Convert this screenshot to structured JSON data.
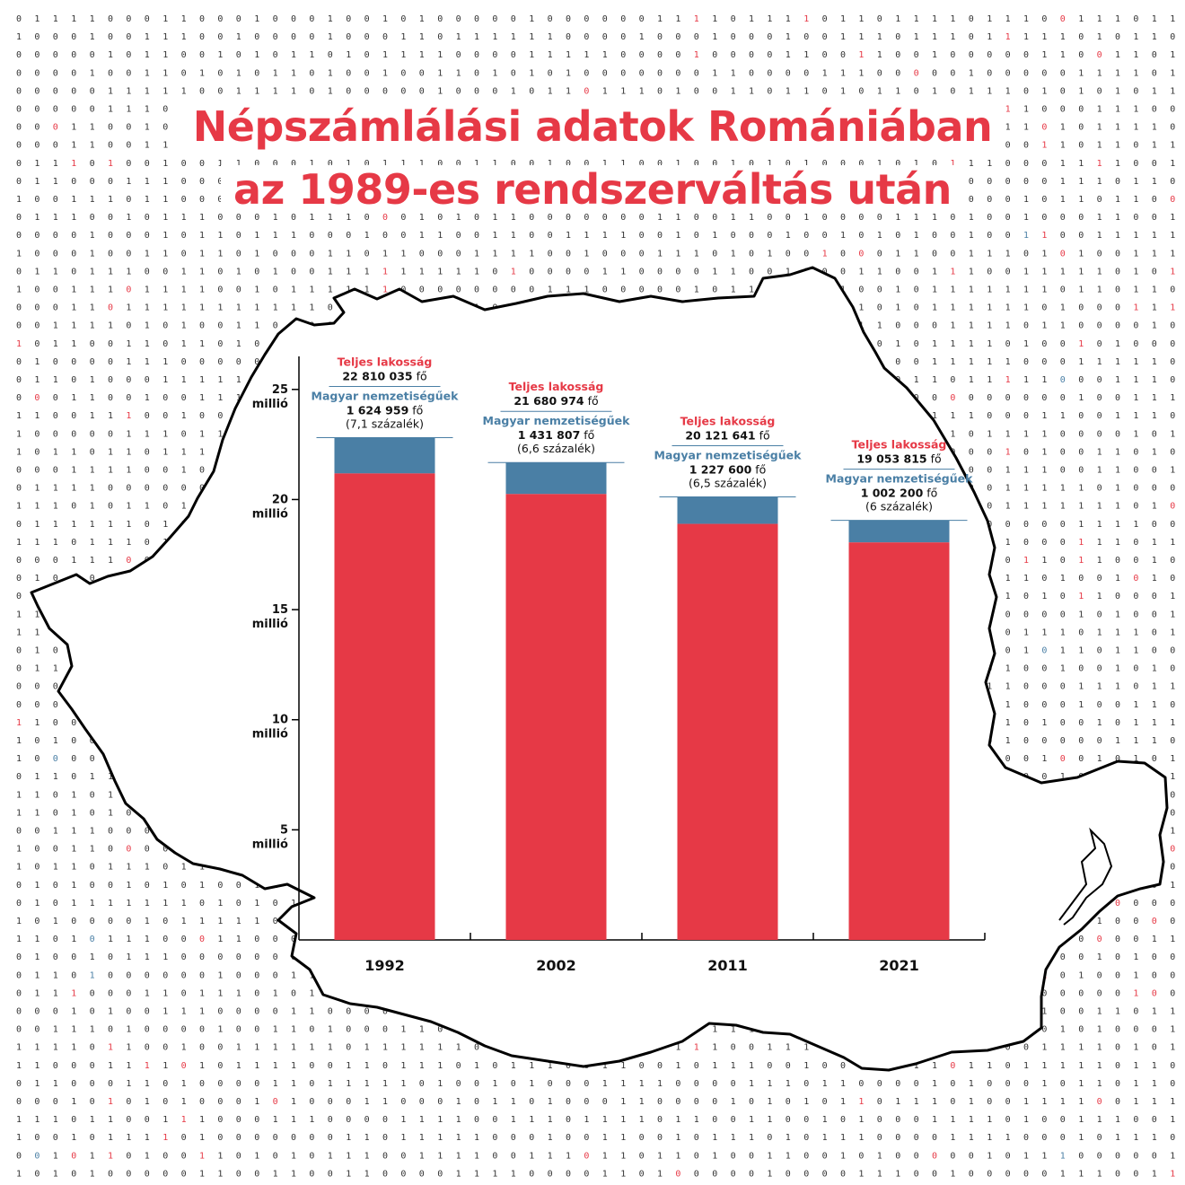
{
  "title": {
    "line1": "Népszámlálási adatok Romániában",
    "line2": "az 1989-es rendszerváltás után"
  },
  "colors": {
    "total": "#e63946",
    "hungarian": "#4a7fa5",
    "title": "#e63946",
    "outline": "#000000"
  },
  "chart_data": {
    "type": "bar",
    "stacked": true,
    "categories": [
      "1992",
      "2002",
      "2011",
      "2021"
    ],
    "series": [
      {
        "name": "Teljes lakosság",
        "values": [
          22810035,
          21680974,
          20121641,
          19053815
        ]
      },
      {
        "name": "Magyar nemzetiségűek",
        "values": [
          1624959,
          1431807,
          1227600,
          1002200
        ]
      }
    ],
    "ylim": [
      0,
      26500000
    ],
    "yticks": [
      {
        "value": 5000000,
        "label": "5"
      },
      {
        "value": 10000000,
        "label": "10"
      },
      {
        "value": 15000000,
        "label": "15"
      },
      {
        "value": 20000000,
        "label": "20"
      },
      {
        "value": 25000000,
        "label": "25"
      }
    ],
    "ytick_unit": "millió",
    "grid": false,
    "annotations": [
      {
        "total_label": "Teljes lakosság",
        "total": "22 810 035",
        "unit": "fő",
        "hu_label": "Magyar nemzetiségűek",
        "hu": "1 624 959",
        "pct": "(7,1 százalék)"
      },
      {
        "total_label": "Teljes lakosság",
        "total": "21 680 974",
        "unit": "fő",
        "hu_label": "Magyar nemzetiségűek",
        "hu": "1 431 807",
        "pct": "(6,6 százalék)"
      },
      {
        "total_label": "Teljes lakosság",
        "total": "20 121 641",
        "unit": "fő",
        "hu_label": "Magyar nemzetiségűek",
        "hu": "1 227 600",
        "pct": "(6,5 százalék)"
      },
      {
        "total_label": "Teljes lakosság",
        "total": "19 053 815",
        "unit": "fő",
        "hu_label": "Magyar nemzetiségűek",
        "hu": "1 002 200",
        "pct": "(6 százalék)"
      }
    ]
  }
}
